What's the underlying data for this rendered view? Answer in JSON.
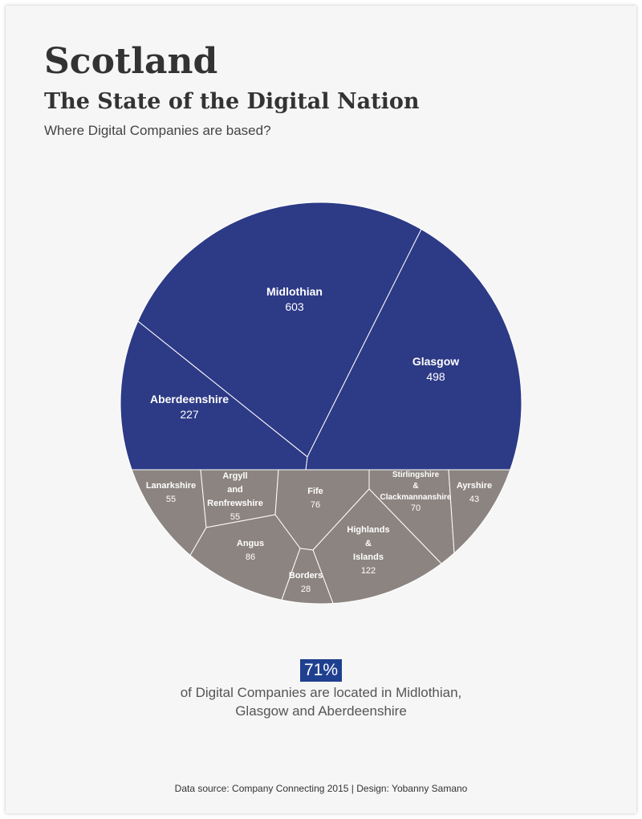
{
  "header": {
    "title": "Scotland",
    "subtitle": "The State of the Digital Nation",
    "question": "Where Digital Companies are based?"
  },
  "colors": {
    "major": "#2d3a86",
    "minor": "#8c8480",
    "border": "#ffffff",
    "label_major": "#ffffff",
    "label_minor": "#ffffff",
    "highlight": "#1f3f8f"
  },
  "chart_data": {
    "type": "voronoi",
    "unit": "digital companies",
    "regions": [
      {
        "name": "Midlothian",
        "label_lines": [
          "Midlothian"
        ],
        "value": 603,
        "group": "major"
      },
      {
        "name": "Glasgow",
        "label_lines": [
          "Glasgow"
        ],
        "value": 498,
        "group": "major"
      },
      {
        "name": "Aberdeenshire",
        "label_lines": [
          "Aberdeenshire"
        ],
        "value": 227,
        "group": "major"
      },
      {
        "name": "Lanarkshire",
        "label_lines": [
          "Lanarkshire"
        ],
        "value": 55,
        "group": "minor"
      },
      {
        "name": "Argyll and Renfrewshire",
        "label_lines": [
          "Argyll",
          "and",
          "Renfrewshire"
        ],
        "value": 55,
        "group": "minor"
      },
      {
        "name": "Fife",
        "label_lines": [
          "Fife"
        ],
        "value": 76,
        "group": "minor"
      },
      {
        "name": "Stirlingshire & Clackmannanshire",
        "label_lines": [
          "Stirlingshire",
          "&",
          "Clackmannanshire"
        ],
        "value": 70,
        "group": "minor"
      },
      {
        "name": "Ayrshire",
        "label_lines": [
          "Ayrshire"
        ],
        "value": 43,
        "group": "minor"
      },
      {
        "name": "Angus",
        "label_lines": [
          "Angus"
        ],
        "value": 86,
        "group": "minor"
      },
      {
        "name": "Highlands & Islands",
        "label_lines": [
          "Highlands",
          "&",
          "Islands"
        ],
        "value": 122,
        "group": "minor"
      },
      {
        "name": "Borders",
        "label_lines": [
          "Borders"
        ],
        "value": 28,
        "group": "minor"
      }
    ]
  },
  "callout": {
    "percent": "71%",
    "line1": "of Digital Companies are located in Midlothian,",
    "line2": "Glasgow and Aberdeenshire"
  },
  "footer": {
    "text": "Data source: Company Connecting 2015  | Design: Yobanny Samano"
  }
}
